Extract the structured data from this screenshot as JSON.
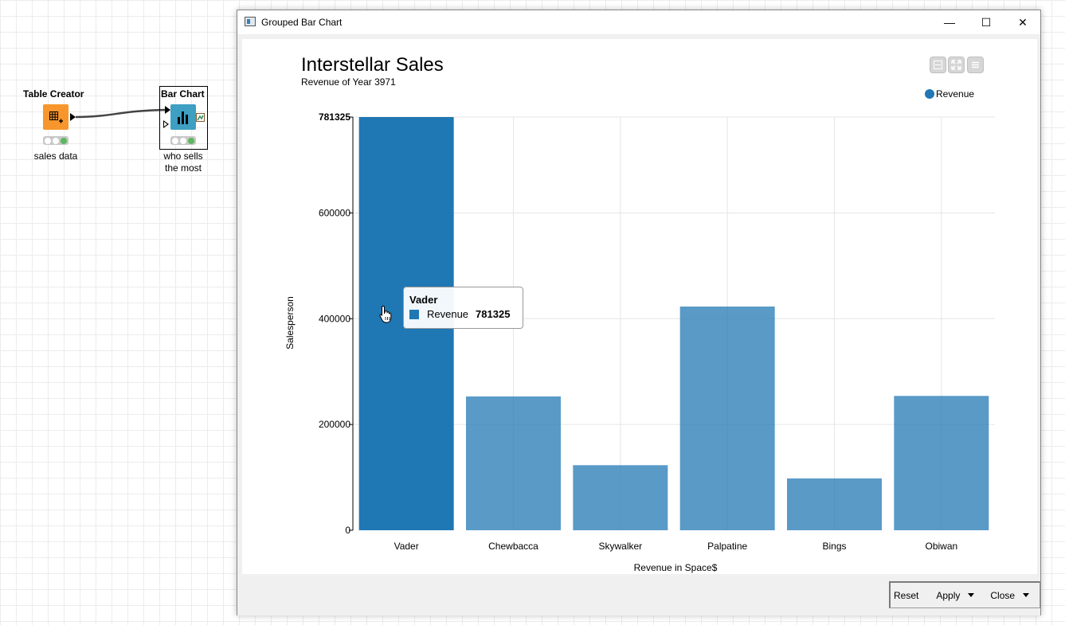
{
  "workflow": {
    "nodes": [
      {
        "title": "Table Creator",
        "label": "sales data",
        "color": "#f7962d",
        "icon": "table-plus-icon"
      },
      {
        "title": "Bar Chart",
        "label_lines": [
          "who sells",
          "the most"
        ],
        "color": "#3e9fc3",
        "icon": "bar-chart-icon"
      }
    ]
  },
  "window": {
    "title": "Grouped Bar Chart",
    "minimize_symbol": "—",
    "maximize_symbol": "☐",
    "close_symbol": "✕"
  },
  "chart_controls": [
    "collapse-icon",
    "fullscreen-icon",
    "menu-icon"
  ],
  "tooltip": {
    "category": "Vader",
    "series": "Revenue",
    "value": "781325"
  },
  "footer": {
    "reset_label": "Reset",
    "apply_label": "Apply",
    "close_label": "Close"
  },
  "chart_data": {
    "type": "bar",
    "title": "Interstellar Sales",
    "subtitle": "Revenue of Year 3971",
    "xlabel": "Revenue in Space$",
    "ylabel": "Salesperson",
    "categories": [
      "Vader",
      "Chewbacca",
      "Skywalker",
      "Palpatine",
      "Bings",
      "Obiwan"
    ],
    "series": [
      {
        "name": "Revenue",
        "values": [
          781325,
          253000,
          123000,
          423000,
          98000,
          254000
        ],
        "color": "#1f77b4"
      }
    ],
    "yticks": [
      "0",
      "200000",
      "400000",
      "600000",
      "781325"
    ],
    "ytick_values": [
      0,
      200000,
      400000,
      600000,
      781325
    ],
    "ylim": [
      0,
      781325
    ],
    "highlighted_category": "Vader",
    "grid": true,
    "legend": "top-right"
  }
}
